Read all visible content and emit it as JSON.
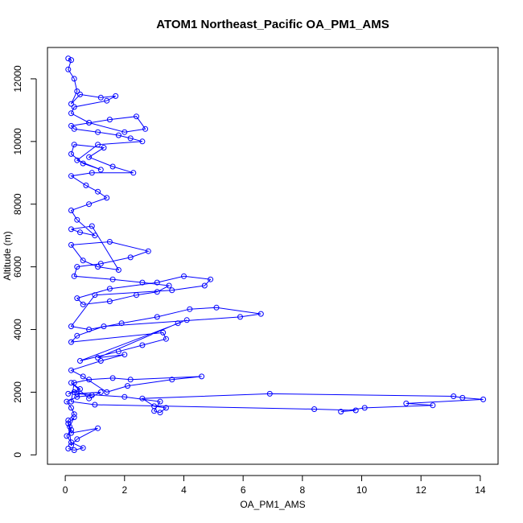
{
  "chart_data": {
    "type": "scatter",
    "title": "ATOM1 Northeast_Pacific OA_PM1_AMS",
    "xlabel": "OA_PM1_AMS",
    "ylabel": "Altitude (m)",
    "xlim": [
      -0.6,
      14.6
    ],
    "ylim": [
      -300,
      13000
    ],
    "xticks": [
      0,
      2,
      4,
      6,
      8,
      10,
      12,
      14
    ],
    "yticks": [
      0,
      2000,
      4000,
      6000,
      8000,
      10000,
      12000
    ],
    "grid": false,
    "legend": "none",
    "marker": "open-circle",
    "connected": true,
    "series_color": "#0000ff",
    "series": [
      {
        "name": "",
        "x": [
          0.1,
          0.3,
          0.6,
          0.2,
          0.05,
          0.2,
          0.1,
          0.3,
          0.15,
          0.2,
          1.1,
          0.4,
          0.2,
          0.1,
          0.3,
          0.2,
          0.05,
          0.4,
          0.9,
          0.3,
          0.1,
          0.5,
          0.2,
          0.8,
          1.2,
          0.4,
          2.0,
          3.2,
          3.0,
          3.2,
          3.4,
          3.0,
          2.6,
          6.9,
          13.1,
          13.4,
          14.1,
          11.5,
          12.4,
          10.1,
          9.3,
          9.8,
          8.4,
          1.0,
          0.2,
          0.3,
          0.8,
          1.6,
          2.2,
          4.6,
          3.6,
          2.1,
          1.4,
          0.6,
          0.2,
          1.2,
          2.0,
          1.1,
          3.8,
          4.1,
          0.5,
          1.8,
          2.6,
          3.4,
          3.3,
          0.2,
          0.4,
          1.3,
          5.9,
          6.6,
          5.1,
          4.2,
          3.1,
          1.9,
          0.8,
          0.2,
          1.0,
          3.6,
          4.7,
          4.9,
          4.0,
          3.1,
          1.5,
          0.4,
          0.6,
          1.5,
          2.4,
          3.1,
          3.5,
          2.6,
          1.6,
          0.3,
          0.4,
          1.2,
          2.2,
          2.8,
          1.5,
          0.2,
          0.6,
          1.1,
          1.8,
          0.9,
          0.2,
          0.5,
          1.0,
          0.4,
          0.2,
          0.8,
          1.4,
          1.1,
          0.7,
          0.2,
          0.9,
          2.3,
          1.6,
          0.8,
          1.3,
          0.3,
          0.2,
          0.6,
          1.2,
          0.4,
          1.1,
          2.6,
          2.2,
          1.8,
          1.1,
          0.3,
          0.2,
          1.5,
          2.4,
          2.7,
          2.0,
          0.8,
          0.2,
          0.3,
          1.4,
          1.7,
          1.2,
          0.5,
          0.2,
          0.4,
          0.3,
          0.1,
          0.2,
          0.1
        ],
        "y": [
          200,
          150,
          220,
          400,
          600,
          800,
          1000,
          1200,
          900,
          700,
          850,
          500,
          300,
          1100,
          1300,
          1500,
          1700,
          1850,
          1900,
          2000,
          1950,
          2100,
          2300,
          1800,
          2000,
          1950,
          1850,
          1700,
          1400,
          1350,
          1500,
          1550,
          1800,
          1950,
          1870,
          1820,
          1770,
          1640,
          1580,
          1500,
          1380,
          1420,
          1460,
          1600,
          1700,
          2300,
          2400,
          2450,
          2400,
          2500,
          2400,
          2200,
          2000,
          2500,
          2700,
          3000,
          3200,
          3100,
          4200,
          4300,
          3000,
          3300,
          3500,
          3700,
          3900,
          3600,
          3800,
          4100,
          4400,
          4500,
          4700,
          4650,
          4400,
          4200,
          4000,
          4100,
          5100,
          5250,
          5400,
          5600,
          5700,
          5500,
          5300,
          5000,
          4800,
          4900,
          5100,
          5200,
          5400,
          5500,
          5600,
          5700,
          6000,
          6100,
          6300,
          6500,
          6800,
          6700,
          6200,
          6000,
          5900,
          7300,
          7200,
          7100,
          7000,
          7500,
          7800,
          8000,
          8200,
          8400,
          8600,
          8900,
          9000,
          9000,
          9200,
          9500,
          9800,
          9900,
          9600,
          9300,
          9100,
          9400,
          9900,
          10000,
          10100,
          10200,
          10300,
          10400,
          10500,
          10700,
          10800,
          10400,
          10300,
          10600,
          10900,
          11100,
          11300,
          11450,
          11400,
          11500,
          11200,
          11600,
          12000,
          12300,
          12600,
          12650
        ]
      }
    ]
  }
}
